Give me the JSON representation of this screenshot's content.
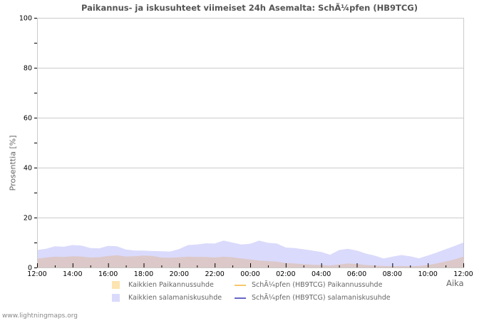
{
  "title": "Paikannus- ja iskusuhteet viimeiset 24h Asemalta: SchÃ¼pfen (HB9TCG)",
  "footer": "www.lightningmaps.org",
  "colors": {
    "location_fill": "#dcc8c8",
    "lightning_fill": "#dadafc",
    "legend_location_swatch": "#fde4b0",
    "legend_lightning_swatch": "#dadafc",
    "station_location_line": "#f5c86a",
    "station_lightning_line": "#6868c8",
    "grid": "#cccccc",
    "axis": "#cccccc"
  },
  "legend": {
    "items": [
      {
        "label": "Kaikkien Paikannussuhde",
        "kind": "swatch",
        "color": "#fde4b0"
      },
      {
        "label": "SchÃ¼pfen (HB9TCG) Paikannussuhde",
        "kind": "line",
        "color": "#f5c86a"
      },
      {
        "label": "Kaikkien salamaniskusuhde",
        "kind": "swatch",
        "color": "#dadafc"
      },
      {
        "label": "SchÃ¼pfen (HB9TCG) salamaniskusuhde",
        "kind": "line",
        "color": "#6868c8"
      }
    ]
  },
  "chart_data": {
    "type": "area",
    "title": "Paikannus- ja iskusuhteet viimeiset 24h Asemalta: SchÃ¼pfen (HB9TCG)",
    "xlabel": "Aika",
    "ylabel": "Prosenttia   [%]",
    "ylim": [
      0,
      100
    ],
    "yticks": [
      0,
      20,
      40,
      60,
      80,
      100
    ],
    "xticks": [
      "12:00",
      "14:00",
      "16:00",
      "18:00",
      "20:00",
      "22:00",
      "00:00",
      "02:00",
      "04:00",
      "06:00",
      "08:00",
      "10:00",
      "12:00"
    ],
    "grid": true,
    "legend_position": "bottom",
    "x": [
      "12:00",
      "12:30",
      "13:00",
      "13:30",
      "14:00",
      "14:30",
      "15:00",
      "15:30",
      "16:00",
      "16:30",
      "17:00",
      "17:30",
      "18:00",
      "18:30",
      "19:00",
      "19:30",
      "20:00",
      "20:30",
      "21:00",
      "21:30",
      "22:00",
      "22:30",
      "23:00",
      "23:30",
      "00:00",
      "00:30",
      "01:00",
      "01:30",
      "02:00",
      "02:30",
      "03:00",
      "03:30",
      "04:00",
      "04:30",
      "05:00",
      "05:30",
      "06:00",
      "06:30",
      "07:00",
      "07:30",
      "08:00",
      "08:30",
      "09:00",
      "09:30",
      "10:00",
      "10:30",
      "11:00",
      "11:30",
      "12:00"
    ],
    "series": [
      {
        "name": "Kaikkien salamaniskusuhde",
        "values": [
          7.0,
          7.5,
          8.5,
          8.3,
          9.0,
          8.8,
          7.8,
          7.7,
          8.7,
          8.5,
          7.2,
          6.8,
          6.8,
          6.6,
          6.5,
          6.4,
          7.4,
          9.0,
          9.2,
          9.7,
          9.6,
          10.8,
          10.0,
          9.2,
          9.5,
          10.8,
          9.9,
          9.6,
          8.0,
          7.8,
          7.3,
          6.8,
          6.2,
          5.1,
          7.0,
          7.5,
          6.8,
          5.6,
          4.8,
          3.6,
          4.3,
          5.0,
          4.5,
          3.7,
          4.8,
          6.0,
          7.3,
          8.6,
          10.0
        ]
      },
      {
        "name": "Kaikkien Paikannussuhde",
        "values": [
          3.5,
          4.0,
          4.3,
          4.2,
          4.5,
          4.4,
          4.0,
          4.1,
          4.6,
          4.9,
          4.4,
          4.5,
          4.8,
          4.6,
          4.0,
          3.9,
          4.1,
          4.3,
          4.2,
          4.2,
          4.0,
          4.3,
          4.1,
          3.6,
          3.2,
          2.8,
          2.6,
          2.3,
          1.8,
          1.6,
          1.3,
          1.1,
          1.0,
          0.8,
          1.2,
          1.6,
          1.4,
          1.0,
          0.8,
          0.6,
          0.5,
          0.6,
          0.5,
          0.6,
          1.0,
          1.6,
          2.4,
          3.2,
          4.3
        ]
      },
      {
        "name": "SchÃ¼pfen (HB9TCG) Paikannussuhde",
        "values": []
      },
      {
        "name": "SchÃ¼pfen (HB9TCG) salamaniskusuhde",
        "values": []
      }
    ]
  }
}
